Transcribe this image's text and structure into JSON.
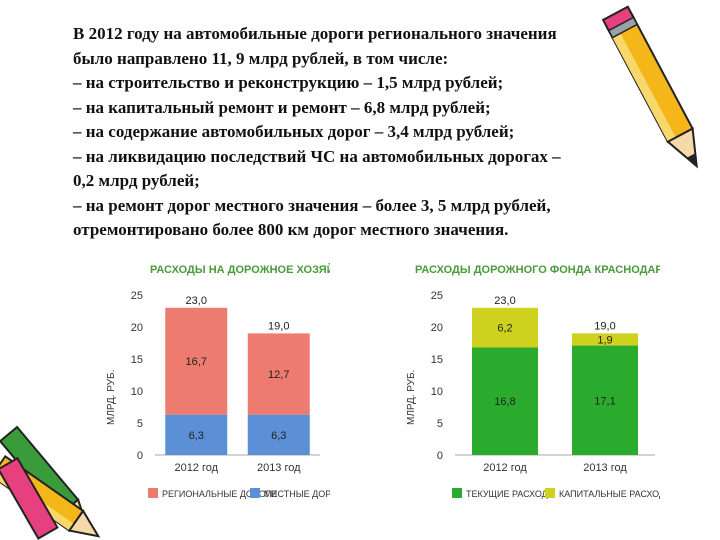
{
  "text": {
    "lines": [
      "В 2012 году на автомобильные дороги регионального значения",
      "было направлено 11, 9 млрд рублей, в том числе:",
      " – на строительство и реконструкцию – 1,5 млрд рублей;",
      " – на капитальный ремонт и ремонт – 6,8 млрд рублей;",
      " – на содержание автомобильных дорог – 3,4 млрд рублей;",
      " – на ликвидацию последствий ЧС на автомобильных дорогах –",
      "0,2 млрд рублей;",
      " – на ремонт дорог местного значения – более 3, 5 млрд рублей,",
      "отремонтировано более 800 км дорог местного значения."
    ]
  },
  "colors": {
    "regional": "#ee7b6f",
    "local": "#5b8fd6",
    "current": "#2bab2d",
    "capital": "#cfd11f",
    "title_green": "#4a9a3c"
  },
  "chart_data": [
    {
      "type": "bar",
      "stacked": true,
      "title": "РАСХОДЫ НА ДОРОЖНОЕ ХОЗЯЙСТВО",
      "ylabel": "МЛРД. РУБ.",
      "ylim": [
        0,
        25
      ],
      "yticks": [
        "25",
        "20",
        "15",
        "10",
        "5",
        "0"
      ],
      "categories": [
        "2012 год",
        "2013 год"
      ],
      "totals": [
        "23,0",
        "19,0"
      ],
      "series": [
        {
          "name": "МЕСТНЫЕ ДОРОГИ",
          "values": [
            6.3,
            6.3
          ],
          "labels": [
            "6,3",
            "6,3"
          ],
          "color": "#5b8fd6"
        },
        {
          "name": "РЕГИОНАЛЬНЫЕ ДОРОГИ",
          "values": [
            16.7,
            12.7
          ],
          "labels": [
            "16,7",
            "12,7"
          ],
          "color": "#ee7b6f"
        }
      ],
      "legend": [
        "РЕГИОНАЛЬНЫЕ ДОРОГИ",
        "МЕСТНЫЕ ДОРОГИ"
      ],
      "legend_position": "bottom"
    },
    {
      "type": "bar",
      "stacked": true,
      "title": "РАСХОДЫ ДОРОЖНОГО ФОНДА КРАСНОДАРСКОГО КРАЯ",
      "ylabel": "МЛРД. РУБ.",
      "ylim": [
        0,
        25
      ],
      "yticks": [
        "25",
        "20",
        "15",
        "10",
        "5",
        "0"
      ],
      "categories": [
        "2012 год",
        "2013 год"
      ],
      "totals": [
        "23,0",
        "19,0"
      ],
      "series": [
        {
          "name": "ТЕКУЩИЕ РАСХОДЫ",
          "values": [
            16.8,
            17.1
          ],
          "labels": [
            "16,8",
            "17,1"
          ],
          "color": "#2bab2d"
        },
        {
          "name": "КАПИТАЛЬНЫЕ РАСХОДЫ",
          "values": [
            6.2,
            1.9
          ],
          "labels": [
            "6,2",
            "1,9"
          ],
          "color": "#cfd11f"
        }
      ],
      "legend": [
        "ТЕКУЩИЕ РАСХОДЫ",
        "КАПИТАЛЬНЫЕ РАСХОДЫ"
      ],
      "legend_position": "bottom"
    }
  ]
}
